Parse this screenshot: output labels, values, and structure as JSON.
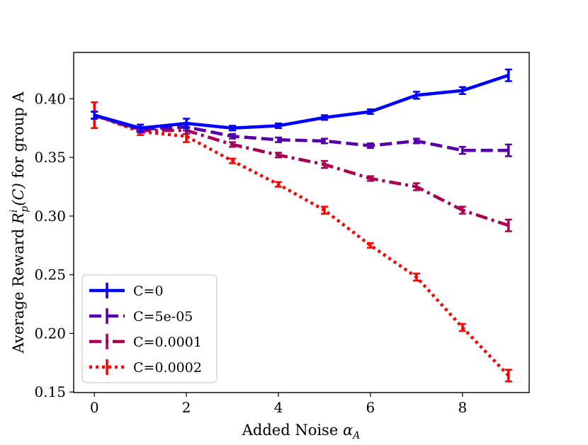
{
  "chart_data": {
    "type": "line",
    "title": "",
    "xlabel": "Added Noise",
    "xlabel_symbol": "α",
    "xlabel_subscript": "A",
    "ylabel": "Average Reward R_p^i(C) for group A",
    "ylabel_parts": {
      "prefix": "Average Reward ",
      "symbol": "R",
      "sub": "p",
      "sup": "i",
      "arg": "(C)",
      "suffix": " for group A"
    },
    "xlim": [
      -0.45,
      9.45
    ],
    "ylim": [
      0.1495,
      0.4395
    ],
    "x_ticks": [
      0,
      2,
      4,
      6,
      8
    ],
    "x_tick_labels": [
      "0",
      "2",
      "4",
      "6",
      "8"
    ],
    "y_ticks": [
      0.15,
      0.2,
      0.25,
      0.3,
      0.35,
      0.4
    ],
    "y_tick_labels": [
      "0.15",
      "0.20",
      "0.25",
      "0.30",
      "0.35",
      "0.40"
    ],
    "legend_position": "lower-left",
    "x": [
      0,
      1,
      2,
      3,
      4,
      5,
      6,
      7,
      8,
      9
    ],
    "series": [
      {
        "name": "C=0",
        "color": "#0000ff",
        "dash": "solid",
        "values": [
          0.386,
          0.375,
          0.379,
          0.375,
          0.377,
          0.384,
          0.389,
          0.403,
          0.407,
          0.42
        ],
        "errors": [
          0.003,
          0.003,
          0.004,
          0.002,
          0.002,
          0.002,
          0.002,
          0.003,
          0.003,
          0.005
        ]
      },
      {
        "name": "C=5e-05",
        "color": "#5500aa",
        "dash": "dashed",
        "values": [
          0.386,
          0.374,
          0.376,
          0.368,
          0.365,
          0.364,
          0.36,
          0.364,
          0.356,
          0.356
        ],
        "errors": [
          0.003,
          0.002,
          0.003,
          0.002,
          0.002,
          0.002,
          0.002,
          0.002,
          0.003,
          0.005
        ]
      },
      {
        "name": "C=0.0001",
        "color": "#aa0055",
        "dash": "dashdot",
        "values": [
          0.386,
          0.373,
          0.373,
          0.361,
          0.352,
          0.344,
          0.332,
          0.325,
          0.305,
          0.292
        ],
        "errors": [
          0.003,
          0.002,
          0.003,
          0.002,
          0.002,
          0.003,
          0.002,
          0.003,
          0.003,
          0.005
        ]
      },
      {
        "name": "C=0.0002",
        "color": "#ff0000",
        "dash": "dotted",
        "values": [
          0.386,
          0.372,
          0.368,
          0.347,
          0.327,
          0.305,
          0.275,
          0.248,
          0.205,
          0.164
        ],
        "errors": [
          0.011,
          0.003,
          0.005,
          0.002,
          0.002,
          0.003,
          0.002,
          0.003,
          0.003,
          0.005
        ]
      }
    ]
  }
}
